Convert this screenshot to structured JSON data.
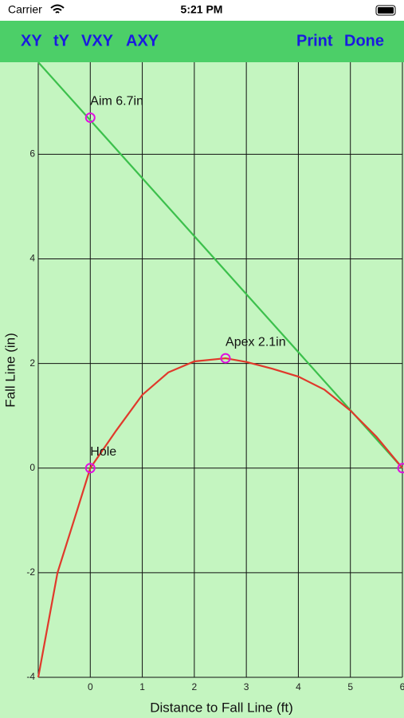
{
  "status_bar": {
    "carrier": "Carrier",
    "time": "5:21 PM"
  },
  "toolbar": {
    "left": [
      "XY",
      "tY",
      "VXY",
      "AXY"
    ],
    "right": [
      "Print",
      "Done"
    ]
  },
  "chart_data": {
    "type": "line",
    "x_label": "Distance to Fall Line (ft)",
    "y_label": "Fall Line  (in)",
    "xlim": [
      -1,
      6
    ],
    "ylim": [
      -4,
      7.76
    ],
    "xticks": [
      0,
      1,
      2,
      3,
      4,
      5,
      6
    ],
    "yticks": [
      -4,
      -2,
      0,
      2,
      4,
      6
    ],
    "grid": true,
    "lines": [
      {
        "color": "#3cc04c",
        "x": [
          -1,
          6
        ],
        "y": [
          7.76,
          0
        ]
      },
      {
        "color": "#e0392b",
        "x": [
          -1,
          -0.63,
          -0.25,
          0,
          0.5,
          1,
          1.5,
          2,
          2.6,
          3,
          3.5,
          4,
          4.5,
          5,
          5.5,
          6
        ],
        "y": [
          -4,
          -2,
          -0.8,
          0,
          0.72,
          1.4,
          1.83,
          2.04,
          2.1,
          2.03,
          1.9,
          1.75,
          1.5,
          1.1,
          0.6,
          0
        ]
      }
    ],
    "markers": {
      "color": "#e010e0",
      "x": [
        0,
        2.6,
        0,
        6
      ],
      "y": [
        6.7,
        2.1,
        0,
        0
      ]
    },
    "annotations": [
      "Aim 6.7in",
      "Apex 2.1in",
      "Hole"
    ]
  }
}
